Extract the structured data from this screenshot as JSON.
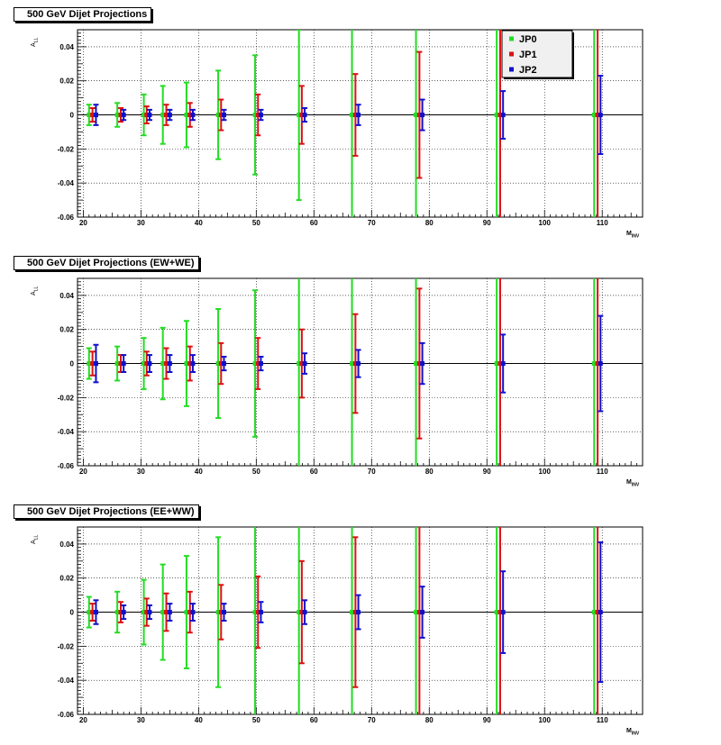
{
  "colors": {
    "JP0": "#22dd22",
    "JP1": "#dd1111",
    "JP2": "#1111cc",
    "frame": "#000000",
    "grid": "#000000"
  },
  "panels": [
    {
      "title": "500 GeV Dijet Projections",
      "show_legend": true
    },
    {
      "title": "500 GeV Dijet Projections (EW+WE)",
      "show_legend": false
    },
    {
      "title": "500 GeV Dijet Projections (EE+WW)",
      "show_legend": false
    }
  ],
  "axis_text": {
    "ylabel_main": "A",
    "ylabel_sub": "LL",
    "xlabel_main": "M",
    "xlabel_sub": "INV"
  },
  "legend_labels": [
    "JP0",
    "JP1",
    "JP2"
  ],
  "chart_data": [
    {
      "type": "scatter",
      "title": "500 GeV Dijet Projections",
      "xlim": [
        19,
        117
      ],
      "ylim": [
        -0.06,
        0.05
      ],
      "xticks": [
        20,
        30,
        40,
        50,
        60,
        70,
        80,
        90,
        100,
        110
      ],
      "yticks": [
        -0.06,
        -0.04,
        -0.02,
        0,
        0.02,
        0.04
      ],
      "ytick_labels": [
        "-0.06",
        "-0.04",
        "-0.02",
        "0",
        "0.02",
        "0.04"
      ],
      "grid": true,
      "legend": "top-right",
      "series": [
        {
          "name": "JP0",
          "x": [
            21.0,
            25.9,
            30.5,
            33.8,
            37.9,
            43.4,
            49.8,
            57.4,
            66.6,
            77.7,
            91.7,
            108.6
          ],
          "y": [
            0,
            0,
            0,
            0,
            0,
            0,
            0,
            0,
            0,
            0,
            0,
            0
          ],
          "err": [
            0.006,
            0.007,
            0.012,
            0.017,
            0.019,
            0.026,
            0.035,
            0.05,
            0.065,
            0.065,
            0.065,
            0.065
          ]
        },
        {
          "name": "JP1",
          "x": [
            21.6,
            26.5,
            31.0,
            34.4,
            38.5,
            43.9,
            50.3,
            57.9,
            67.2,
            78.3,
            92.3,
            109.2
          ],
          "y": [
            0,
            0,
            0,
            0,
            0,
            0,
            0,
            0,
            0,
            0,
            0,
            0
          ],
          "err": [
            0.004,
            0.004,
            0.005,
            0.006,
            0.007,
            0.009,
            0.012,
            0.017,
            0.024,
            0.037,
            0.065,
            0.065
          ]
        },
        {
          "name": "JP2",
          "x": [
            22.2,
            27.0,
            31.5,
            35.0,
            39.0,
            44.4,
            50.8,
            58.4,
            67.7,
            78.8,
            92.8,
            109.7
          ],
          "y": [
            0,
            0,
            0,
            0,
            0,
            0,
            0,
            0,
            0,
            0,
            0,
            0
          ],
          "err": [
            0.006,
            0.003,
            0.003,
            0.003,
            0.003,
            0.003,
            0.003,
            0.004,
            0.006,
            0.009,
            0.014,
            0.023
          ]
        }
      ]
    },
    {
      "type": "scatter",
      "title": "500 GeV Dijet Projections (EW+WE)",
      "xlim": [
        19,
        117
      ],
      "ylim": [
        -0.06,
        0.05
      ],
      "xticks": [
        20,
        30,
        40,
        50,
        60,
        70,
        80,
        90,
        100,
        110
      ],
      "yticks": [
        -0.06,
        -0.04,
        -0.02,
        0,
        0.02,
        0.04
      ],
      "ytick_labels": [
        "-0.06",
        "-0.04",
        "-0.02",
        "0",
        "0.02",
        "0.04"
      ],
      "grid": true,
      "series": [
        {
          "name": "JP0",
          "x": [
            21.0,
            25.9,
            30.5,
            33.8,
            37.9,
            43.4,
            49.8,
            57.4,
            66.6,
            77.7,
            91.7,
            108.6
          ],
          "y": [
            0,
            0,
            0,
            0,
            0,
            0,
            0,
            0,
            0,
            0,
            0,
            0
          ],
          "err": [
            0.009,
            0.01,
            0.015,
            0.021,
            0.025,
            0.032,
            0.043,
            0.065,
            0.065,
            0.065,
            0.065,
            0.065
          ]
        },
        {
          "name": "JP1",
          "x": [
            21.6,
            26.5,
            31.0,
            34.4,
            38.5,
            43.9,
            50.3,
            57.9,
            67.2,
            78.3,
            92.3,
            109.2
          ],
          "y": [
            0,
            0,
            0,
            0,
            0,
            0,
            0,
            0,
            0,
            0,
            0,
            0
          ],
          "err": [
            0.007,
            0.005,
            0.007,
            0.009,
            0.01,
            0.012,
            0.015,
            0.02,
            0.029,
            0.044,
            0.065,
            0.065
          ]
        },
        {
          "name": "JP2",
          "x": [
            22.2,
            27.0,
            31.5,
            35.0,
            39.0,
            44.4,
            50.8,
            58.4,
            67.7,
            78.8,
            92.8,
            109.7
          ],
          "y": [
            0,
            0,
            0,
            0,
            0,
            0,
            0,
            0,
            0,
            0,
            0,
            0
          ],
          "err": [
            0.011,
            0.005,
            0.005,
            0.005,
            0.005,
            0.004,
            0.004,
            0.006,
            0.008,
            0.012,
            0.017,
            0.028
          ]
        }
      ]
    },
    {
      "type": "scatter",
      "title": "500 GeV Dijet Projections (EE+WW)",
      "xlim": [
        19,
        117
      ],
      "ylim": [
        -0.06,
        0.05
      ],
      "xticks": [
        20,
        30,
        40,
        50,
        60,
        70,
        80,
        90,
        100,
        110
      ],
      "yticks": [
        -0.06,
        -0.04,
        -0.02,
        0,
        0.02,
        0.04
      ],
      "ytick_labels": [
        "-0.06",
        "-0.04",
        "-0.02",
        "0",
        "0.02",
        "0.04"
      ],
      "grid": true,
      "series": [
        {
          "name": "JP0",
          "x": [
            21.0,
            25.9,
            30.5,
            33.8,
            37.9,
            43.4,
            49.8,
            57.4,
            66.6,
            77.7,
            91.7,
            108.6
          ],
          "y": [
            0,
            0,
            0,
            0,
            0,
            0,
            0,
            0,
            0,
            0,
            0,
            0
          ],
          "err": [
            0.009,
            0.012,
            0.019,
            0.028,
            0.033,
            0.044,
            0.065,
            0.065,
            0.065,
            0.065,
            0.065,
            0.065
          ]
        },
        {
          "name": "JP1",
          "x": [
            21.6,
            26.5,
            31.0,
            34.4,
            38.5,
            43.9,
            50.3,
            57.9,
            67.2,
            78.3,
            92.3,
            109.2
          ],
          "y": [
            0,
            0,
            0,
            0,
            0,
            0,
            0,
            0,
            0,
            0,
            0,
            0
          ],
          "err": [
            0.005,
            0.006,
            0.008,
            0.011,
            0.012,
            0.016,
            0.021,
            0.03,
            0.044,
            0.065,
            0.065,
            0.065
          ]
        },
        {
          "name": "JP2",
          "x": [
            22.2,
            27.0,
            31.5,
            35.0,
            39.0,
            44.4,
            50.8,
            58.4,
            67.7,
            78.8,
            92.8,
            109.7
          ],
          "y": [
            0,
            0,
            0,
            0,
            0,
            0,
            0,
            0,
            0,
            0,
            0,
            0
          ],
          "err": [
            0.007,
            0.004,
            0.004,
            0.005,
            0.005,
            0.005,
            0.006,
            0.007,
            0.01,
            0.015,
            0.024,
            0.041
          ]
        }
      ]
    }
  ]
}
